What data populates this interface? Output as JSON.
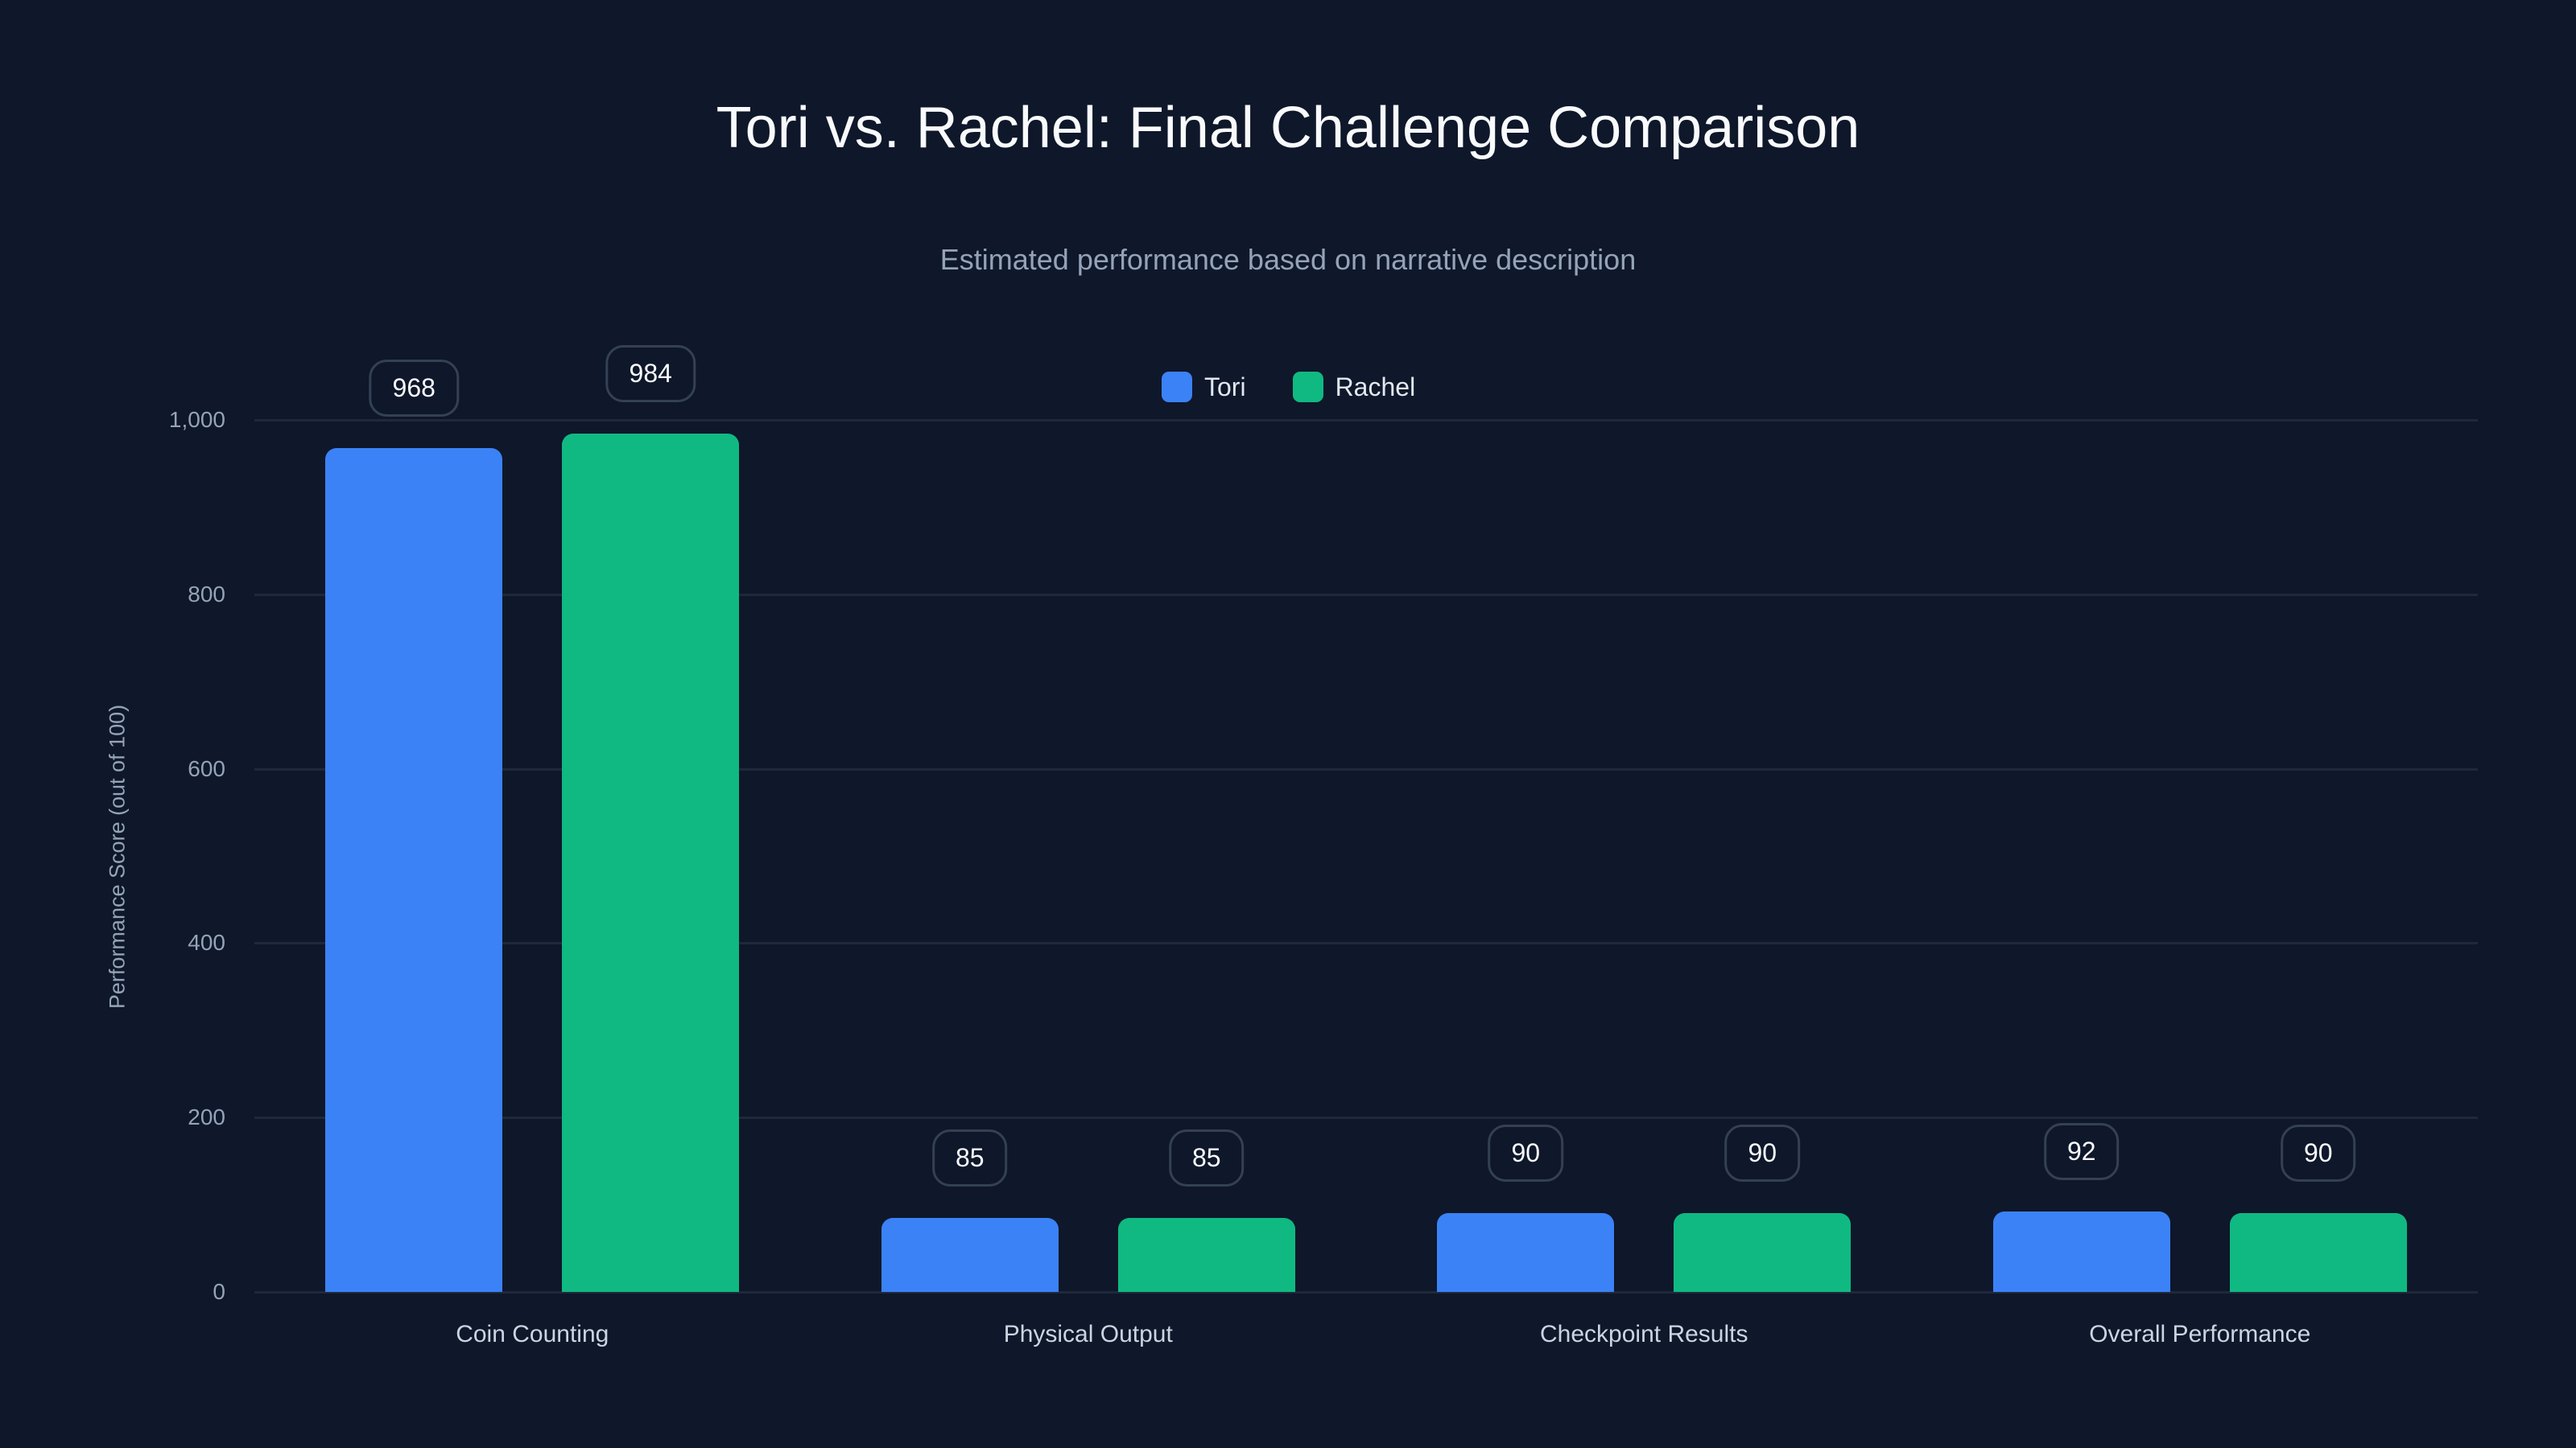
{
  "chart_data": {
    "type": "bar",
    "title": "Tori vs. Rachel: Final Challenge Comparison",
    "subtitle": "Estimated performance based on narrative description",
    "xlabel": "",
    "ylabel": "Performance Score (out of 100)",
    "ylim": [
      0,
      1000
    ],
    "yticks": [
      "0",
      "200",
      "400",
      "600",
      "800",
      "1,000"
    ],
    "grid": true,
    "legend_position": "top-center",
    "categories": [
      "Coin Counting",
      "Physical Output",
      "Checkpoint Results",
      "Overall Performance"
    ],
    "series": [
      {
        "name": "Tori",
        "color": "#3b82f6",
        "values": [
          968,
          85,
          90,
          92
        ]
      },
      {
        "name": "Rachel",
        "color": "#10b981",
        "values": [
          984,
          85,
          90,
          90
        ]
      }
    ]
  }
}
